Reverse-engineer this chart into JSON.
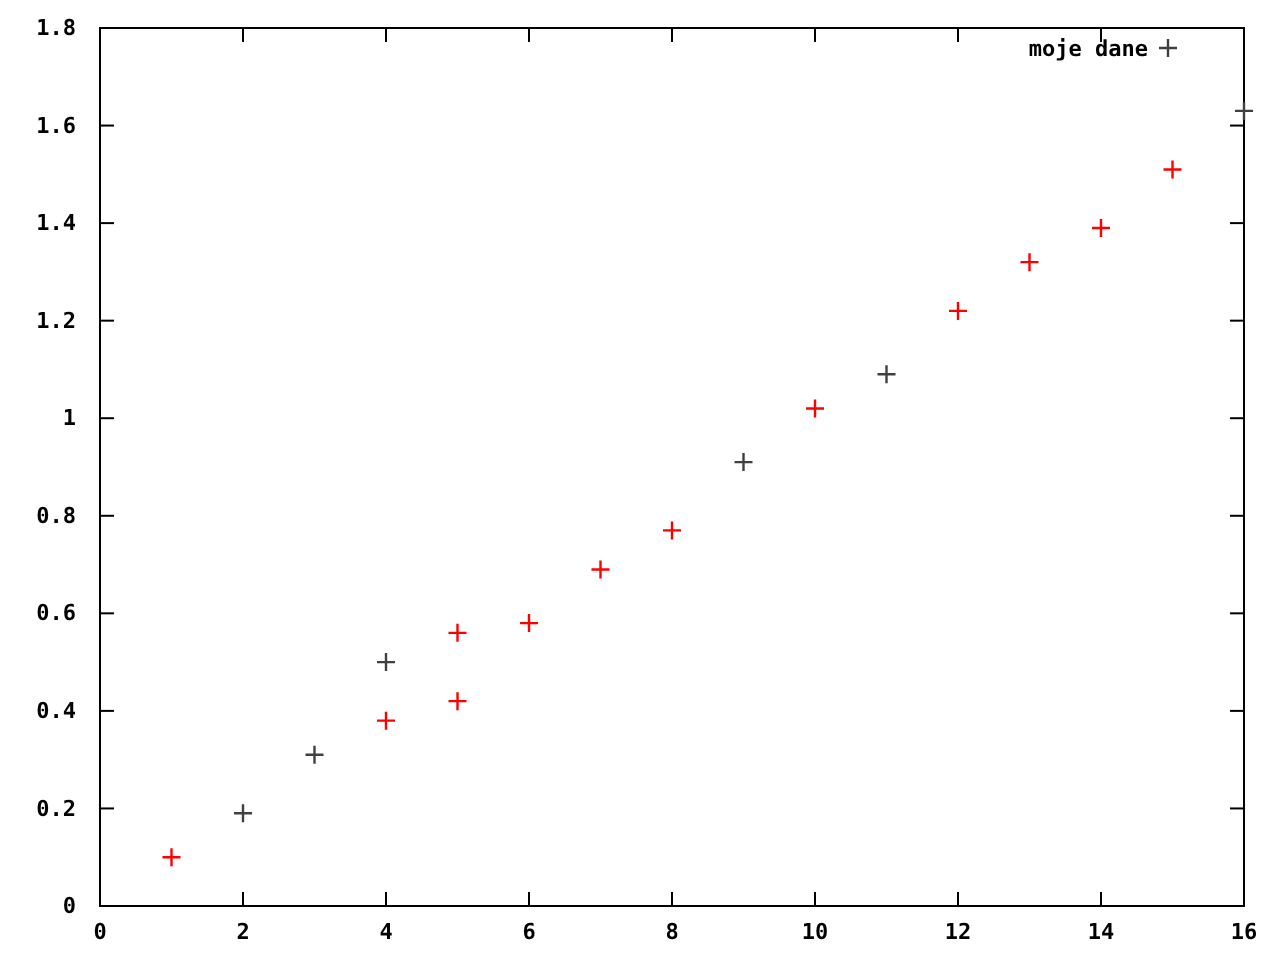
{
  "chart_data": {
    "type": "scatter",
    "xlim": [
      0,
      16
    ],
    "ylim": [
      0,
      1.8
    ],
    "xticks": [
      0,
      2,
      4,
      6,
      8,
      10,
      12,
      14,
      16
    ],
    "yticks": [
      0,
      0.2,
      0.4,
      0.6,
      0.8,
      1,
      1.2,
      1.4,
      1.6,
      1.8
    ],
    "grid": false,
    "legend": "top right",
    "marker": "cross",
    "series": [
      {
        "name": "moje dane",
        "color": "#404040",
        "x": [
          2,
          3,
          4,
          9,
          11,
          16
        ],
        "values": [
          0.19,
          0.31,
          0.5,
          0.91,
          1.09,
          1.63
        ]
      },
      {
        "color": "#ff0000",
        "x": [
          1,
          4,
          5,
          5,
          6,
          7,
          8,
          10,
          12,
          13,
          14,
          15
        ],
        "values": [
          0.1,
          0.38,
          0.42,
          0.56,
          0.58,
          0.69,
          0.77,
          1.02,
          1.22,
          1.32,
          1.39,
          1.51
        ]
      }
    ]
  }
}
